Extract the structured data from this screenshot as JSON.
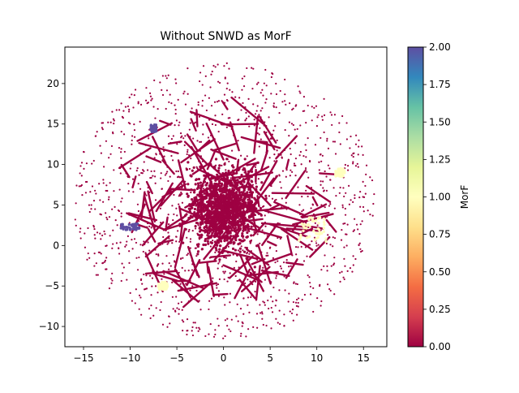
{
  "chart_data": {
    "type": "scatter",
    "title": "Without SNWD as MorF",
    "xlabel": "",
    "ylabel": "",
    "xlim": [
      -17,
      17.5
    ],
    "ylim": [
      -12.5,
      24.5
    ],
    "xticks": [
      -15,
      -10,
      -5,
      0,
      5,
      10,
      15
    ],
    "yticks": [
      -10,
      -5,
      0,
      5,
      10,
      15,
      20
    ],
    "grid": false,
    "colorbar": {
      "label": "MorF",
      "colormap": "Spectral",
      "range": [
        0,
        2
      ],
      "ticks": [
        "0.00",
        "0.25",
        "0.50",
        "0.75",
        "1.00",
        "1.25",
        "1.50",
        "1.75",
        "2.00"
      ]
    },
    "colors": {
      "value_0": "#9e0142",
      "value_1": "#ffffbe",
      "value_2": "#5e4fa2"
    },
    "clusters": [
      {
        "value": 0,
        "center": [
          0,
          5.5
        ],
        "extent": [
          -15,
          16,
          -11,
          23
        ],
        "note": "dense cloud of points"
      },
      {
        "value": 1,
        "center": [
          9.5,
          2
        ],
        "extent": [
          8,
          11,
          0.5,
          3.5
        ]
      },
      {
        "value": 1,
        "center": [
          12.5,
          9
        ],
        "extent": [
          12,
          13,
          8.5,
          9.5
        ]
      },
      {
        "value": 1,
        "center": [
          -6.5,
          -5
        ],
        "extent": [
          -7,
          -6,
          -5.5,
          -4.5
        ]
      },
      {
        "value": 2,
        "center": [
          -10,
          2.3
        ],
        "extent": [
          -11,
          -9,
          1.9,
          2.7
        ]
      },
      {
        "value": 2,
        "center": [
          -7.5,
          14.5
        ],
        "extent": [
          -7.8,
          -7.2,
          14,
          15
        ]
      }
    ]
  }
}
